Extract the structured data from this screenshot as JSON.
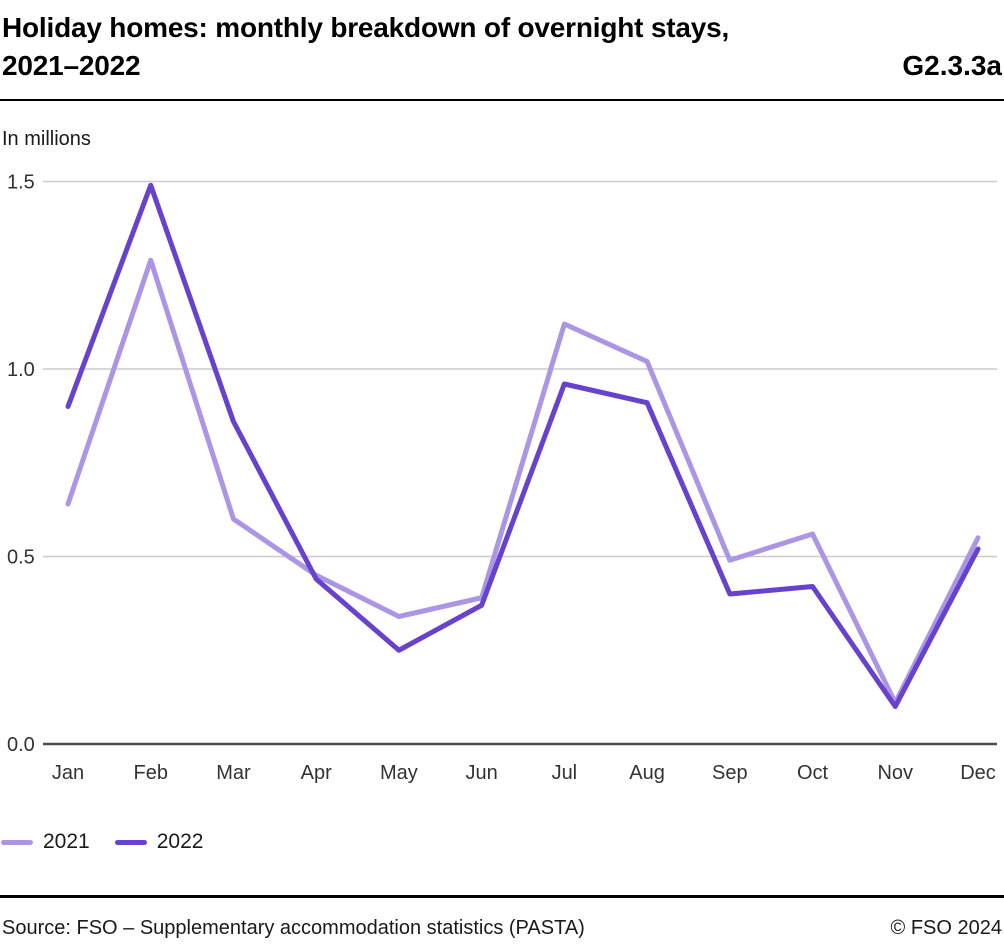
{
  "header": {
    "title_line1": "Holiday homes: monthly breakdown of overnight stays,",
    "title_line2": "2021–2022",
    "code": "G2.3.3a"
  },
  "chart_data": {
    "type": "line",
    "unit_label": "In millions",
    "categories": [
      "Jan",
      "Feb",
      "Mar",
      "Apr",
      "May",
      "Jun",
      "Jul",
      "Aug",
      "Sep",
      "Oct",
      "Nov",
      "Dec"
    ],
    "series": [
      {
        "name": "2021",
        "color": "#ab96e5",
        "values": [
          0.64,
          1.29,
          0.6,
          0.45,
          0.34,
          0.39,
          1.12,
          1.02,
          0.49,
          0.56,
          0.11,
          0.55
        ]
      },
      {
        "name": "2022",
        "color": "#6642ce",
        "values": [
          0.9,
          1.49,
          0.86,
          0.44,
          0.25,
          0.37,
          0.96,
          0.91,
          0.4,
          0.42,
          0.1,
          0.52
        ]
      }
    ],
    "ylim": [
      0,
      1.5
    ],
    "yticks": [
      {
        "label": "0.0",
        "value": 0.0
      },
      {
        "label": "0.5",
        "value": 0.5
      },
      {
        "label": "1.0",
        "value": 1.0
      },
      {
        "label": "1.5",
        "value": 1.5
      }
    ],
    "grid": true,
    "legend_position": "bottom",
    "grid_color": "#cccccc",
    "axis_color": "#4d4d4d",
    "tick_text_color": "#333333"
  },
  "footer": {
    "source": "Source: FSO – Supplementary accommodation statistics (PASTA)",
    "copyright": "© FSO 2024"
  }
}
